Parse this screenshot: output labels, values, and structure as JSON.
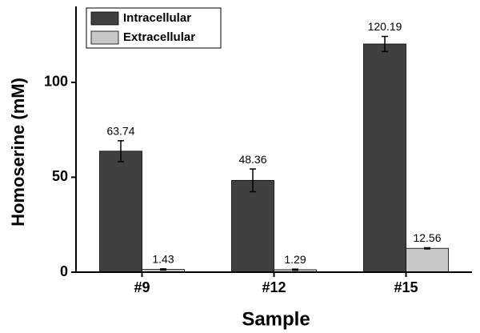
{
  "chart_data": {
    "type": "bar",
    "x_label": "Sample",
    "y_label": "Homoserine (mM)",
    "categories": [
      "#9",
      "#12",
      "#15"
    ],
    "series": [
      {
        "name": "Intracellular",
        "color": "#404040",
        "values": [
          63.74,
          48.36,
          120.19
        ],
        "errors": [
          5.5,
          6,
          4
        ]
      },
      {
        "name": "Extracellular",
        "color": "#c8c8c8",
        "values": [
          1.43,
          1.29,
          12.56
        ],
        "errors": [
          0.3,
          0.3,
          0.3
        ]
      }
    ],
    "ylim": [
      0,
      140
    ],
    "yticks": [
      0,
      50,
      100
    ],
    "legend": "upper left"
  }
}
